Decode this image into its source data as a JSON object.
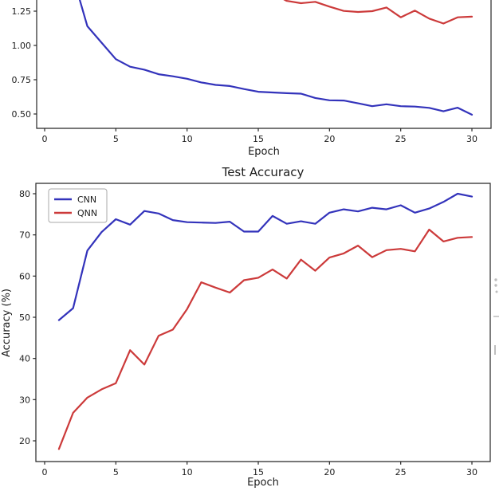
{
  "figure": {
    "background": "#ffffff",
    "spine_color": "#262626",
    "text_color": "#1c1c1c",
    "note_top_chart_title": "",
    "epochs": [
      1,
      2,
      3,
      4,
      5,
      6,
      7,
      8,
      9,
      10,
      11,
      12,
      13,
      14,
      15,
      16,
      17,
      18,
      19,
      20,
      21,
      22,
      23,
      24,
      25,
      26,
      27,
      28,
      29,
      30
    ]
  },
  "chart_data": [
    {
      "id": "training-loss-top",
      "type": "line",
      "title": "",
      "xlabel": "Epoch",
      "ylabel": "",
      "xticks": [
        0,
        5,
        10,
        15,
        20,
        25,
        30
      ],
      "xtick_labels": [
        "0",
        "5",
        "10",
        "15",
        "20",
        "25",
        "30"
      ],
      "yticks": [
        1.25,
        1.0,
        0.75,
        0.5
      ],
      "ytick_labels": [
        "1.25",
        "1.00",
        "0.75",
        "0.50"
      ],
      "xlim": [
        -0.56,
        31.35
      ],
      "visible_ylim": [
        0.396,
        1.332
      ],
      "grid": false,
      "legend_visible": false,
      "x": [
        1,
        2,
        3,
        4,
        5,
        6,
        7,
        8,
        9,
        10,
        11,
        12,
        13,
        14,
        15,
        16,
        17,
        18,
        19,
        20,
        21,
        22,
        23,
        24,
        25,
        26,
        27,
        28,
        29,
        30
      ],
      "series": [
        {
          "name": "CNN",
          "color": "#3333bb",
          "values": [
            2.2,
            1.5,
            1.14,
            1.02,
            0.9,
            0.845,
            0.823,
            0.79,
            0.775,
            0.757,
            0.73,
            0.712,
            0.704,
            0.682,
            0.662,
            0.657,
            0.652,
            0.648,
            0.617,
            0.6,
            0.598,
            0.578,
            0.557,
            0.571,
            0.557,
            0.554,
            0.545,
            0.52,
            0.546,
            0.495
          ]
        },
        {
          "name": "QNN",
          "color": "#cc3a3a",
          "values": [
            5.0,
            3.6,
            2.9,
            2.45,
            2.1,
            1.9,
            1.75,
            1.64,
            1.56,
            1.5,
            1.46,
            1.43,
            1.41,
            1.4,
            1.39,
            1.38,
            1.325,
            1.308,
            1.318,
            1.283,
            1.252,
            1.244,
            1.25,
            1.277,
            1.205,
            1.254,
            1.196,
            1.16,
            1.205,
            1.21
          ]
        }
      ]
    },
    {
      "id": "test-accuracy-bottom",
      "type": "line",
      "title": "Test Accuracy",
      "xlabel": "Epoch",
      "ylabel": "Accuracy (%)",
      "xticks": [
        0,
        5,
        10,
        15,
        20,
        25,
        30
      ],
      "xtick_labels": [
        "0",
        "5",
        "10",
        "15",
        "20",
        "25",
        "30"
      ],
      "yticks": [
        80,
        70,
        60,
        50,
        40,
        30,
        20
      ],
      "ytick_labels": [
        "80",
        "70",
        "60",
        "50",
        "40",
        "30",
        "20"
      ],
      "xlim": [
        -0.62,
        31.3
      ],
      "ylim": [
        15.0,
        82.5
      ],
      "grid": false,
      "legend": {
        "position": "upper left",
        "entries": [
          "CNN",
          "QNN"
        ]
      },
      "x": [
        1,
        2,
        3,
        4,
        5,
        6,
        7,
        8,
        9,
        10,
        11,
        12,
        13,
        14,
        15,
        16,
        17,
        18,
        19,
        20,
        21,
        22,
        23,
        24,
        25,
        26,
        27,
        28,
        29,
        30
      ],
      "series": [
        {
          "name": "CNN",
          "color": "#3333bb",
          "values": [
            49.3,
            52.2,
            66.2,
            70.7,
            73.8,
            72.5,
            75.8,
            75.2,
            73.6,
            73.1,
            73.0,
            72.9,
            73.2,
            70.8,
            70.8,
            74.6,
            72.7,
            73.3,
            72.7,
            75.4,
            76.2,
            75.7,
            76.6,
            76.2,
            77.2,
            75.4,
            76.4,
            78.0,
            80.0,
            79.3
          ]
        },
        {
          "name": "QNN",
          "color": "#cc3a3a",
          "values": [
            18.0,
            26.8,
            30.5,
            32.5,
            34.0,
            42.0,
            38.5,
            45.5,
            47.0,
            52.0,
            58.5,
            57.2,
            56.0,
            59.0,
            59.6,
            61.6,
            59.4,
            64.0,
            61.3,
            64.5,
            65.5,
            67.4,
            64.6,
            66.3,
            66.6,
            66.0,
            71.3,
            68.4,
            69.3,
            69.5
          ]
        }
      ]
    }
  ]
}
